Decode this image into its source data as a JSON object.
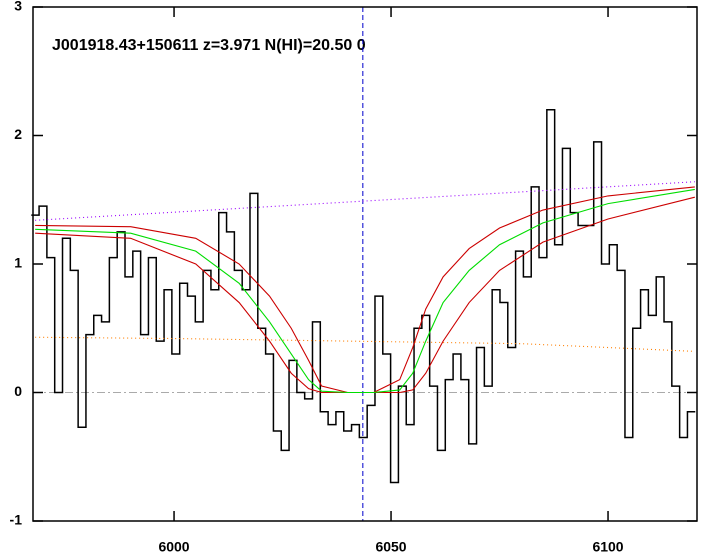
{
  "chart_data": {
    "type": "line",
    "title": "J001918.43+150611 z=3.971 N(HI)=20.50 0",
    "xlim": [
      5967.5,
      6120.5
    ],
    "ylim": [
      -1,
      3
    ],
    "xticks": [
      6000,
      6050,
      6100
    ],
    "yticks": [
      -1,
      0,
      1,
      2,
      3
    ],
    "hline": 0,
    "vline": 6043.5,
    "x": [
      5968,
      5969.8,
      5971.6,
      5973.4,
      5975.2,
      5977,
      5978.8,
      5980.6,
      5982.4,
      5984.2,
      5986,
      5987.8,
      5989.6,
      5991.4,
      5993.2,
      5995,
      5996.8,
      5998.6,
      6000.4,
      6002.2,
      6004,
      6005.8,
      6007.6,
      6009.4,
      6011.2,
      6013,
      6014.8,
      6016.6,
      6018.4,
      6020.2,
      6022,
      6023.8,
      6025.6,
      6027.4,
      6029.2,
      6031,
      6032.8,
      6034.6,
      6036.4,
      6038.2,
      6040,
      6041.8,
      6043.6,
      6045.4,
      6047.2,
      6049,
      6050.8,
      6052.6,
      6054.4,
      6056.2,
      6058,
      6059.8,
      6061.6,
      6063.4,
      6065.2,
      6067,
      6068.8,
      6070.6,
      6072.4,
      6074.2,
      6076,
      6077.8,
      6079.6,
      6081.4,
      6083.2,
      6085,
      6086.8,
      6088.6,
      6090.4,
      6092.2,
      6094,
      6095.8,
      6097.6,
      6099.4,
      6101.2,
      6103,
      6104.8,
      6106.6,
      6108.4,
      6110.2,
      6112,
      6113.8,
      6115.6,
      6117.4,
      6119.2
    ],
    "series": [
      {
        "color": "#000000",
        "step": true,
        "values": [
          1.38,
          1.45,
          1.05,
          0.0,
          1.2,
          0.95,
          -0.27,
          0.45,
          0.6,
          0.55,
          1.05,
          1.25,
          0.9,
          1.1,
          0.45,
          1.05,
          0.4,
          0.8,
          0.3,
          0.85,
          0.75,
          0.55,
          0.95,
          0.8,
          1.4,
          1.25,
          0.95,
          0.8,
          1.55,
          0.5,
          0.3,
          -0.3,
          -0.45,
          0.25,
          0.0,
          -0.05,
          0.55,
          -0.15,
          -0.25,
          -0.15,
          -0.3,
          -0.25,
          -0.35,
          -0.1,
          0.75,
          0.3,
          -0.7,
          0.05,
          -0.25,
          0.5,
          0.6,
          0.05,
          -0.45,
          0.1,
          0.3,
          0.1,
          -0.4,
          0.35,
          0.05,
          0.8,
          0.7,
          0.35,
          1.1,
          0.9,
          1.6,
          1.05,
          2.2,
          1.15,
          1.9,
          1.4,
          1.3,
          1.3,
          1.95,
          1.0,
          1.15,
          0.95,
          -0.35,
          0.5,
          0.8,
          0.6,
          0.9,
          0.55,
          0.05,
          -0.35,
          -0.15
        ]
      },
      {
        "color": "#cc0000",
        "x": [
          5968,
          5990,
          6005,
          6015,
          6022,
          6027,
          6031,
          6034,
          6040,
          6046,
          6052,
          6055,
          6058,
          6062,
          6068,
          6075,
          6085,
          6100,
          6120
        ],
        "values": [
          1.3,
          1.29,
          1.2,
          1.0,
          0.75,
          0.5,
          0.25,
          0.05,
          0,
          0,
          0.1,
          0.35,
          0.65,
          0.9,
          1.12,
          1.28,
          1.42,
          1.53,
          1.6
        ]
      },
      {
        "color": "#cc0000",
        "x": [
          5968,
          5990,
          6005,
          6015,
          6022,
          6027,
          6031,
          6034,
          6040,
          6046,
          6052,
          6055,
          6058,
          6062,
          6068,
          6075,
          6085,
          6100,
          6120
        ],
        "values": [
          1.24,
          1.2,
          1.0,
          0.7,
          0.4,
          0.15,
          0.03,
          0,
          0,
          0,
          0,
          0.02,
          0.15,
          0.4,
          0.7,
          0.95,
          1.17,
          1.35,
          1.52
        ]
      },
      {
        "color": "#00dd00",
        "x": [
          5968,
          5990,
          6005,
          6015,
          6022,
          6027,
          6031,
          6034,
          6040,
          6046,
          6052,
          6055,
          6058,
          6062,
          6068,
          6075,
          6085,
          6100,
          6120
        ],
        "values": [
          1.27,
          1.24,
          1.1,
          0.85,
          0.55,
          0.3,
          0.1,
          0.01,
          0,
          0,
          0.02,
          0.15,
          0.4,
          0.7,
          0.95,
          1.15,
          1.32,
          1.47,
          1.58
        ]
      },
      {
        "color": "#9900ff",
        "dotted": true,
        "x": [
          5968,
          6120
        ],
        "values": [
          1.34,
          1.64
        ]
      },
      {
        "color": "#ff7f00",
        "dotted": true,
        "x": [
          5968,
          6000,
          6040,
          6080,
          6120
        ],
        "values": [
          0.43,
          0.42,
          0.4,
          0.38,
          0.32
        ]
      }
    ]
  }
}
